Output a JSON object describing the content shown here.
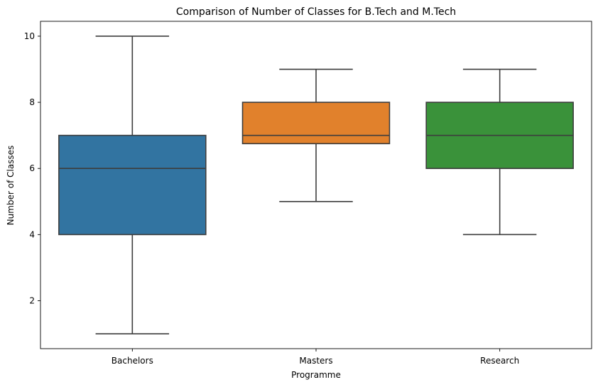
{
  "chart_data": {
    "type": "box",
    "title": "Comparison of Number of Classes for B.Tech and M.Tech",
    "xlabel": "Programme",
    "ylabel": "Number of Classes",
    "ylim": [
      0.55,
      10.45
    ],
    "yticks": [
      2,
      4,
      6,
      8,
      10
    ],
    "grid": false,
    "categories": [
      "Bachelors",
      "Masters",
      "Research"
    ],
    "boxes": [
      {
        "category": "Bachelors",
        "min": 1,
        "q1": 4,
        "median": 6,
        "q3": 7,
        "max": 10,
        "color": "#3274a1"
      },
      {
        "category": "Masters",
        "min": 5,
        "q1": 6.75,
        "median": 7,
        "q3": 8,
        "max": 9,
        "color": "#e1812c"
      },
      {
        "category": "Research",
        "min": 4,
        "q1": 6,
        "median": 7,
        "q3": 8,
        "max": 9,
        "color": "#3a923a"
      }
    ],
    "line_color": "#3d3d3d"
  }
}
